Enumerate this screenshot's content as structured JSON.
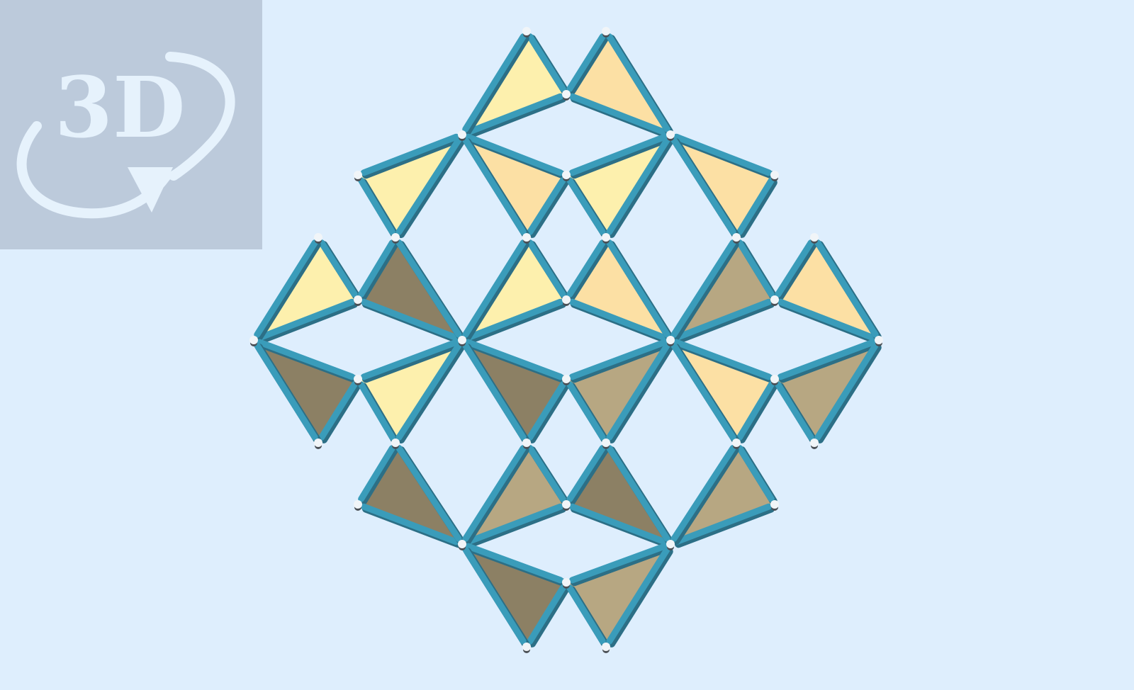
{
  "badge": {
    "label": "3D",
    "icon": "rotate-3d-icon"
  },
  "colors": {
    "background": "#deeefd",
    "badge_bg": "#bccadb",
    "badge_fg": "#e6f2fc",
    "strut": "#3a9cba",
    "strut_shadow": "#2c6f86",
    "face_light_a": "#fdf0ad",
    "face_light_b": "#fce0a4",
    "face_dark_a": "#8c8064",
    "face_dark_b": "#b7a782",
    "node": "#f1f5f8"
  }
}
